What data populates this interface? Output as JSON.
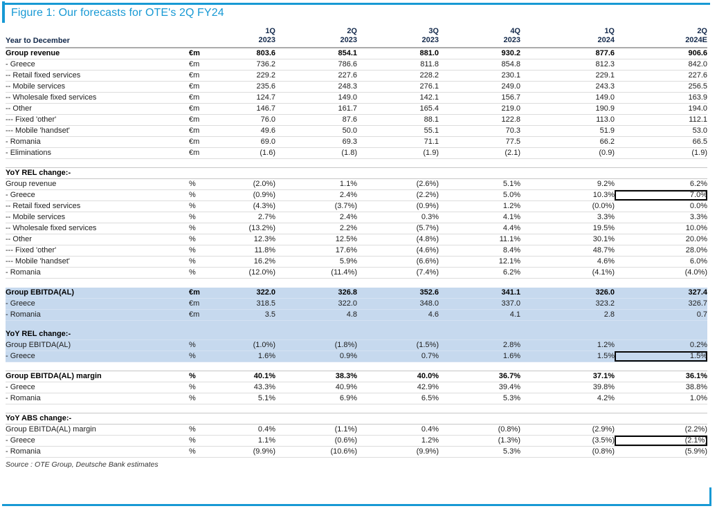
{
  "figure": {
    "title": "Figure 1: Our forecasts for OTE's 2Q FY24",
    "source": "Source : OTE Group, Deutsche Bank estimates",
    "accent_color": "#1799d4",
    "header_text_color": "#13294b",
    "shaded_section_color": "#c6d9ee",
    "highlight_box_color": "#000000"
  },
  "table": {
    "row_header": "Year to December",
    "columns": [
      {
        "line1": "1Q",
        "line2": "2023"
      },
      {
        "line1": "2Q",
        "line2": "2023"
      },
      {
        "line1": "3Q",
        "line2": "2023"
      },
      {
        "line1": "4Q",
        "line2": "2023"
      },
      {
        "line1": "1Q",
        "line2": "2024"
      },
      {
        "line1": "2Q",
        "line2": "2024E"
      }
    ],
    "sections": [
      {
        "name": "group-revenue-section",
        "shaded": false,
        "rows": [
          {
            "type": "data",
            "bold": true,
            "label": "Group revenue",
            "unit": "€m",
            "values": [
              "803.6",
              "854.1",
              "881.0",
              "930.2",
              "877.6",
              "906.6"
            ]
          },
          {
            "type": "data",
            "bold": false,
            "label": "- Greece",
            "unit": "€m",
            "values": [
              "736.2",
              "786.6",
              "811.8",
              "854.8",
              "812.3",
              "842.0"
            ]
          },
          {
            "type": "data",
            "bold": false,
            "label": "-- Retail fixed services",
            "unit": "€m",
            "values": [
              "229.2",
              "227.6",
              "228.2",
              "230.1",
              "229.1",
              "227.6"
            ]
          },
          {
            "type": "data",
            "bold": false,
            "label": "-- Mobile services",
            "unit": "€m",
            "values": [
              "235.6",
              "248.3",
              "276.1",
              "249.0",
              "243.3",
              "256.5"
            ]
          },
          {
            "type": "data",
            "bold": false,
            "label": "-- Wholesale fixed services",
            "unit": "€m",
            "values": [
              "124.7",
              "149.0",
              "142.1",
              "156.7",
              "149.0",
              "163.9"
            ]
          },
          {
            "type": "data",
            "bold": false,
            "label": "-- Other",
            "unit": "€m",
            "values": [
              "146.7",
              "161.7",
              "165.4",
              "219.0",
              "190.9",
              "194.0"
            ]
          },
          {
            "type": "data",
            "bold": false,
            "label": "--- Fixed 'other'",
            "unit": "€m",
            "values": [
              "76.0",
              "87.6",
              "88.1",
              "122.8",
              "113.0",
              "112.1"
            ]
          },
          {
            "type": "data",
            "bold": false,
            "label": "--- Mobile 'handset'",
            "unit": "€m",
            "values": [
              "49.6",
              "50.0",
              "55.1",
              "70.3",
              "51.9",
              "53.0"
            ]
          },
          {
            "type": "data",
            "bold": false,
            "label": "- Romania",
            "unit": "€m",
            "values": [
              "69.0",
              "69.3",
              "71.1",
              "77.5",
              "66.2",
              "66.5"
            ]
          },
          {
            "type": "data",
            "bold": false,
            "label": "- Eliminations",
            "unit": "€m",
            "values": [
              "(1.6)",
              "(1.8)",
              "(1.9)",
              "(2.1)",
              "(0.9)",
              "(1.9)"
            ]
          }
        ]
      },
      {
        "name": "revenue-yoy-rel-change-section",
        "shaded": false,
        "rows": [
          {
            "type": "gap"
          },
          {
            "type": "section",
            "label": "YoY REL change:-"
          },
          {
            "type": "data",
            "bold": false,
            "label": "Group revenue",
            "unit": "%",
            "values": [
              "(2.0%)",
              "1.1%",
              "(2.6%)",
              "5.1%",
              "9.2%",
              "6.2%"
            ]
          },
          {
            "type": "data",
            "bold": false,
            "label": "- Greece",
            "unit": "%",
            "values": [
              "(0.9%)",
              "2.4%",
              "(2.2%)",
              "5.0%",
              "10.3%",
              "7.0%"
            ],
            "boxed": 5
          },
          {
            "type": "data",
            "bold": false,
            "label": "-- Retail fixed services",
            "unit": "%",
            "values": [
              "(4.3%)",
              "(3.7%)",
              "(0.9%)",
              "1.2%",
              "(0.0%)",
              "0.0%"
            ]
          },
          {
            "type": "data",
            "bold": false,
            "label": "-- Mobile services",
            "unit": "%",
            "values": [
              "2.7%",
              "2.4%",
              "0.3%",
              "4.1%",
              "3.3%",
              "3.3%"
            ]
          },
          {
            "type": "data",
            "bold": false,
            "label": "-- Wholesale fixed services",
            "unit": "%",
            "values": [
              "(13.2%)",
              "2.2%",
              "(5.7%)",
              "4.4%",
              "19.5%",
              "10.0%"
            ]
          },
          {
            "type": "data",
            "bold": false,
            "label": "-- Other",
            "unit": "%",
            "values": [
              "12.3%",
              "12.5%",
              "(4.8%)",
              "11.1%",
              "30.1%",
              "20.0%"
            ]
          },
          {
            "type": "data",
            "bold": false,
            "label": "--- Fixed 'other'",
            "unit": "%",
            "values": [
              "11.8%",
              "17.6%",
              "(4.6%)",
              "8.4%",
              "48.7%",
              "28.0%"
            ]
          },
          {
            "type": "data",
            "bold": false,
            "label": "--- Mobile 'handset'",
            "unit": "%",
            "values": [
              "16.2%",
              "5.9%",
              "(6.6%)",
              "12.1%",
              "4.6%",
              "6.0%"
            ]
          },
          {
            "type": "data",
            "bold": false,
            "label": "- Romania",
            "unit": "%",
            "values": [
              "(12.0%)",
              "(11.4%)",
              "(7.4%)",
              "6.2%",
              "(4.1%)",
              "(4.0%)"
            ]
          },
          {
            "type": "gap"
          }
        ]
      },
      {
        "name": "group-ebitda-section",
        "shaded": true,
        "rows": [
          {
            "type": "data",
            "bold": true,
            "label": "Group EBITDA(AL)",
            "unit": "€m",
            "values": [
              "322.0",
              "326.8",
              "352.6",
              "341.1",
              "326.0",
              "327.4"
            ]
          },
          {
            "type": "data",
            "bold": false,
            "label": "- Greece",
            "unit": "€m",
            "values": [
              "318.5",
              "322.0",
              "348.0",
              "337.0",
              "323.2",
              "326.7"
            ]
          },
          {
            "type": "data",
            "bold": false,
            "label": "- Romania",
            "unit": "€m",
            "values": [
              "3.5",
              "4.8",
              "4.6",
              "4.1",
              "2.8",
              "0.7"
            ]
          },
          {
            "type": "gap"
          },
          {
            "type": "section",
            "label": "YoY REL change:-"
          },
          {
            "type": "data",
            "bold": false,
            "label": "Group EBITDA(AL)",
            "unit": "%",
            "values": [
              "(1.0%)",
              "(1.8%)",
              "(1.5%)",
              "2.8%",
              "1.2%",
              "0.2%"
            ]
          },
          {
            "type": "data",
            "bold": false,
            "label": "- Greece",
            "unit": "%",
            "values": [
              "1.6%",
              "0.9%",
              "0.7%",
              "1.6%",
              "1.5%",
              "1.5%"
            ],
            "boxed": 5
          }
        ]
      },
      {
        "name": "ebitda-margin-section",
        "shaded": false,
        "rows": [
          {
            "type": "gap"
          },
          {
            "type": "data",
            "bold": true,
            "topline": true,
            "label": "Group EBITDA(AL) margin",
            "unit": "%",
            "values": [
              "40.1%",
              "38.3%",
              "40.0%",
              "36.7%",
              "37.1%",
              "36.1%"
            ]
          },
          {
            "type": "data",
            "bold": false,
            "label": "- Greece",
            "unit": "%",
            "values": [
              "43.3%",
              "40.9%",
              "42.9%",
              "39.4%",
              "39.8%",
              "38.8%"
            ]
          },
          {
            "type": "data",
            "bold": false,
            "label": "- Romania",
            "unit": "%",
            "values": [
              "5.1%",
              "6.9%",
              "6.5%",
              "5.3%",
              "4.2%",
              "1.0%"
            ]
          }
        ]
      },
      {
        "name": "yoy-abs-change-section",
        "shaded": false,
        "rows": [
          {
            "type": "gap"
          },
          {
            "type": "section",
            "label": "YoY ABS change:-"
          },
          {
            "type": "data",
            "bold": false,
            "label": "Group EBITDA(AL) margin",
            "unit": "%",
            "values": [
              "0.4%",
              "(1.1%)",
              "0.4%",
              "(0.8%)",
              "(2.9%)",
              "(2.2%)"
            ]
          },
          {
            "type": "data",
            "bold": false,
            "label": "- Greece",
            "unit": "%",
            "values": [
              "1.1%",
              "(0.6%)",
              "1.2%",
              "(1.3%)",
              "(3.5%)",
              "(2.1%)"
            ],
            "boxed": 5
          },
          {
            "type": "data",
            "bold": false,
            "label": "- Romania",
            "unit": "%",
            "values": [
              "(9.9%)",
              "(10.6%)",
              "(9.9%)",
              "5.3%",
              "(0.8%)",
              "(5.9%)"
            ]
          }
        ]
      }
    ]
  }
}
